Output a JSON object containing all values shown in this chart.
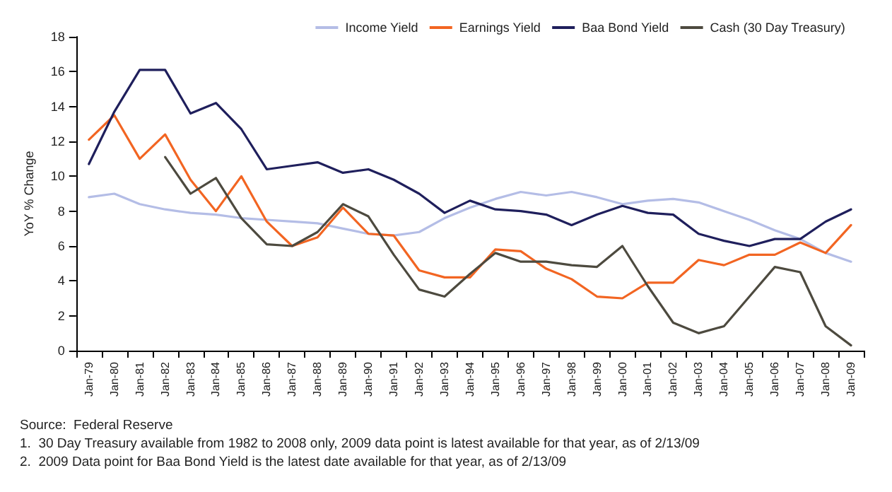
{
  "chart_data": {
    "type": "line",
    "ylabel": "YoY % Change",
    "categories": [
      "Jan-79",
      "Jan-80",
      "Jan-81",
      "Jan-82",
      "Jan-83",
      "Jan-84",
      "Jan-85",
      "Jan-86",
      "Jan-87",
      "Jan-88",
      "Jan-89",
      "Jan-90",
      "Jan-91",
      "Jan-92",
      "Jan-93",
      "Jan-94",
      "Jan-95",
      "Jan-96",
      "Jan-97",
      "Jan-98",
      "Jan-99",
      "Jan-00",
      "Jan-01",
      "Jan-02",
      "Jan-03",
      "Jan-04",
      "Jan-05",
      "Jan-06",
      "Jan-07",
      "Jan-08",
      "Jan-09"
    ],
    "series": [
      {
        "name": "Income Yield",
        "color": "#b4bde6",
        "values": [
          8.8,
          9.0,
          8.4,
          8.1,
          7.9,
          7.8,
          7.6,
          7.5,
          7.4,
          7.3,
          7.0,
          6.7,
          6.6,
          6.8,
          7.6,
          8.2,
          8.7,
          9.1,
          8.9,
          9.1,
          8.8,
          8.4,
          8.6,
          8.7,
          8.5,
          8.0,
          7.5,
          6.9,
          6.4,
          5.6,
          5.1
        ]
      },
      {
        "name": "Earnings Yield",
        "color": "#f26522",
        "values": [
          12.1,
          13.5,
          11.0,
          12.4,
          9.8,
          8.0,
          10.0,
          7.4,
          6.0,
          6.5,
          8.2,
          6.7,
          6.6,
          4.6,
          4.2,
          4.2,
          5.8,
          5.7,
          4.7,
          4.1,
          3.1,
          3.0,
          3.9,
          3.9,
          5.2,
          4.9,
          5.5,
          5.5,
          6.2,
          5.6,
          7.2
        ]
      },
      {
        "name": "Baa Bond Yield",
        "color": "#1f1f5c",
        "values": [
          10.7,
          13.7,
          16.1,
          16.1,
          13.6,
          14.2,
          12.7,
          10.4,
          10.6,
          10.8,
          10.2,
          10.4,
          9.8,
          9.0,
          7.9,
          8.6,
          8.1,
          8.0,
          7.8,
          7.2,
          7.8,
          8.3,
          7.9,
          7.8,
          6.7,
          6.3,
          6.0,
          6.4,
          6.4,
          7.4,
          8.1
        ]
      },
      {
        "name": "Cash (30 Day Treasury)",
        "color": "#4d4a3f",
        "values": [
          null,
          null,
          null,
          11.1,
          9.0,
          9.9,
          7.6,
          6.1,
          6.0,
          6.8,
          8.4,
          7.7,
          5.5,
          3.5,
          3.1,
          4.4,
          5.6,
          5.1,
          5.1,
          4.9,
          4.8,
          6.0,
          3.7,
          1.6,
          1.0,
          1.4,
          3.1,
          4.8,
          4.5,
          1.4,
          0.3
        ]
      }
    ],
    "ylim": [
      0,
      18
    ],
    "yticks": [
      0,
      2,
      4,
      6,
      8,
      10,
      12,
      14,
      16,
      18
    ],
    "grid": false,
    "legend": "top right",
    "marker": "none",
    "line_style": "solid",
    "annotations": [
      "Source:  Federal Reserve",
      "1.  30 Day Treasury available from 1982 to 2008 only, 2009 data point is latest available for that year, as of 2/13/09",
      "2.  2009 Data point for Baa Bond Yield is the latest date available for that year, as of 2/13/09"
    ]
  }
}
